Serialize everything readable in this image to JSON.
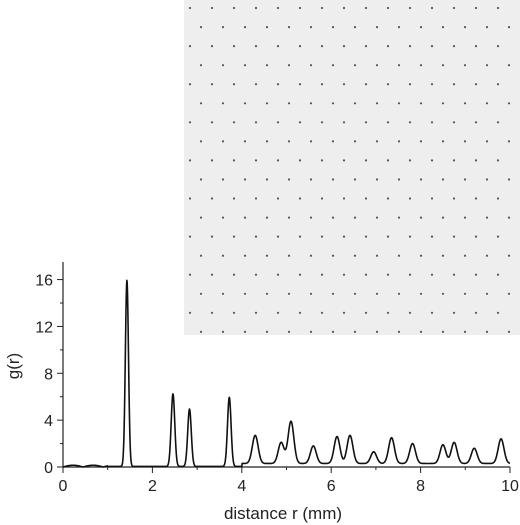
{
  "chart_data": {
    "type": "line",
    "title": "",
    "xlabel": "distance r (mm)",
    "ylabel": "g(r)",
    "xlim": [
      0,
      10
    ],
    "ylim": [
      0,
      17.5
    ],
    "xticks": [
      0,
      2,
      4,
      6,
      8,
      10
    ],
    "yticks": [
      0,
      4,
      8,
      12,
      16
    ],
    "grid": false,
    "inset": {
      "kind": "dot-lattice image",
      "background": "#eeeeee",
      "dot_color": "#555555"
    },
    "line_color": "#111111",
    "series": [
      {
        "name": "",
        "peaks": [
          {
            "r": 1.43,
            "g": 15.9
          },
          {
            "r": 2.46,
            "g": 6.2
          },
          {
            "r": 2.83,
            "g": 4.9
          },
          {
            "r": 3.72,
            "g": 5.9
          },
          {
            "r": 4.3,
            "g": 2.4
          },
          {
            "r": 4.88,
            "g": 1.8
          },
          {
            "r": 5.1,
            "g": 3.6
          },
          {
            "r": 5.6,
            "g": 1.5
          },
          {
            "r": 6.13,
            "g": 2.3
          },
          {
            "r": 6.42,
            "g": 2.4
          },
          {
            "r": 6.95,
            "g": 1.0
          },
          {
            "r": 7.35,
            "g": 2.2
          },
          {
            "r": 7.82,
            "g": 1.7
          },
          {
            "r": 8.5,
            "g": 1.6
          },
          {
            "r": 8.75,
            "g": 1.8
          },
          {
            "r": 9.2,
            "g": 1.3
          },
          {
            "r": 9.8,
            "g": 2.1
          }
        ]
      }
    ]
  }
}
